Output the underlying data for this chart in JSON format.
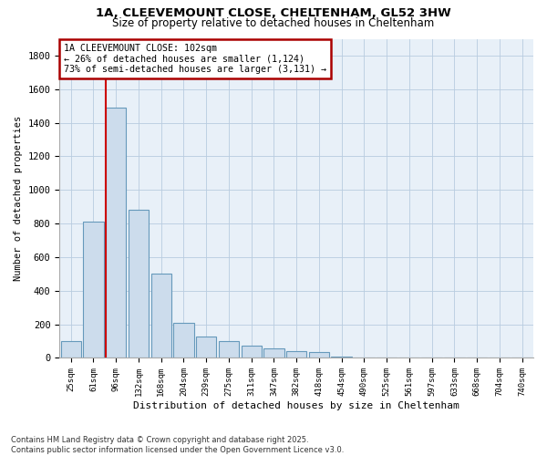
{
  "title1": "1A, CLEEVEMOUNT CLOSE, CHELTENHAM, GL52 3HW",
  "title2": "Size of property relative to detached houses in Cheltenham",
  "xlabel": "Distribution of detached houses by size in Cheltenham",
  "ylabel": "Number of detached properties",
  "categories": [
    "25sqm",
    "61sqm",
    "96sqm",
    "132sqm",
    "168sqm",
    "204sqm",
    "239sqm",
    "275sqm",
    "311sqm",
    "347sqm",
    "382sqm",
    "418sqm",
    "454sqm",
    "490sqm",
    "525sqm",
    "561sqm",
    "597sqm",
    "633sqm",
    "668sqm",
    "704sqm",
    "740sqm"
  ],
  "values": [
    100,
    810,
    1490,
    880,
    500,
    210,
    130,
    100,
    75,
    55,
    40,
    35,
    10,
    5,
    5,
    3,
    2,
    2,
    1,
    1,
    1
  ],
  "bar_color": "#ccdcec",
  "bar_edge_color": "#6699bb",
  "grid_color": "#b8cce0",
  "bg_color": "#e8f0f8",
  "annotation_box_color": "#aa0000",
  "annotation_line1": "1A CLEEVEMOUNT CLOSE: 102sqm",
  "annotation_line2": "← 26% of detached houses are smaller (1,124)",
  "annotation_line3": "73% of semi-detached houses are larger (3,131) →",
  "vline_x": 1.55,
  "vline_color": "#cc0000",
  "footnote": "Contains HM Land Registry data © Crown copyright and database right 2025.\nContains public sector information licensed under the Open Government Licence v3.0.",
  "ylim": [
    0,
    1900
  ],
  "yticks": [
    0,
    200,
    400,
    600,
    800,
    1000,
    1200,
    1400,
    1600,
    1800
  ]
}
